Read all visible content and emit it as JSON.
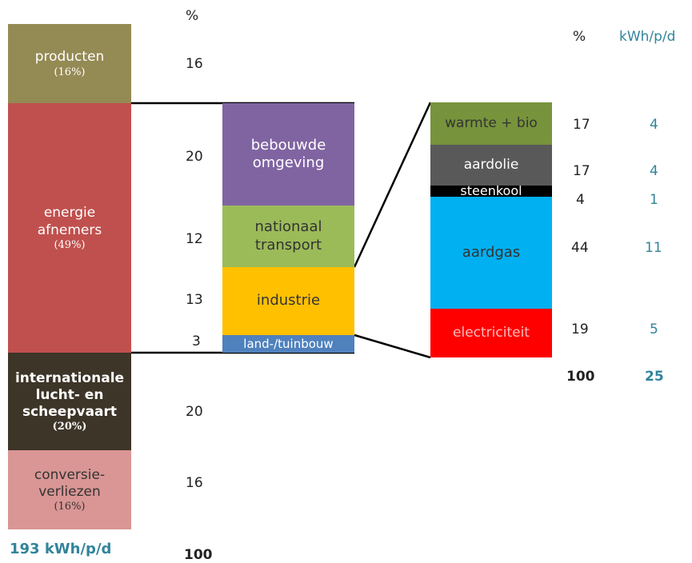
{
  "title": "",
  "col1": {
    "pct_header": "%",
    "segments": [
      {
        "label": "producten",
        "pct": "(16%)",
        "value": "16",
        "color": "#948a54"
      },
      {
        "label": "energie afnemers",
        "pct": "(49%)",
        "value": "",
        "color": "#c0504d"
      },
      {
        "label": "internationale lucht- en scheepvaart",
        "pct": "(20%)",
        "value": "20",
        "color": "#3d3528"
      },
      {
        "label": "conversie-verliezen",
        "pct": "(16%)",
        "value": "16",
        "color": "#d99694"
      }
    ],
    "total_kwh": "193 kWh/p/d",
    "total_pct": "100"
  },
  "col2": {
    "segments": [
      {
        "label": "bebouwde omgeving",
        "value": "20",
        "color": "#8064a2"
      },
      {
        "label": "nationaal transport",
        "value": "12",
        "color": "#9bbb59"
      },
      {
        "label": "industrie",
        "value": "13",
        "color": "#ffc000"
      },
      {
        "label": "land-/tuinbouw",
        "value": "3",
        "color": "#4f81bd"
      }
    ]
  },
  "col3": {
    "pct_header": "%",
    "kwh_header": "kWh/p/d",
    "segments": [
      {
        "label": "warmte + bio",
        "pct": "17",
        "kwh": "4",
        "color": "#77933c"
      },
      {
        "label": "aardolie",
        "pct": "17",
        "kwh": "4",
        "color": "#595959"
      },
      {
        "label": "steenkool",
        "pct": "4",
        "kwh": "1",
        "color": "#000000"
      },
      {
        "label": "aardgas",
        "pct": "44",
        "kwh": "11",
        "color": "#00b0f0"
      },
      {
        "label": "electriciteit",
        "pct": "19",
        "kwh": "5",
        "color": "#ff0000"
      }
    ],
    "total_pct": "100",
    "total_kwh": "25"
  }
}
